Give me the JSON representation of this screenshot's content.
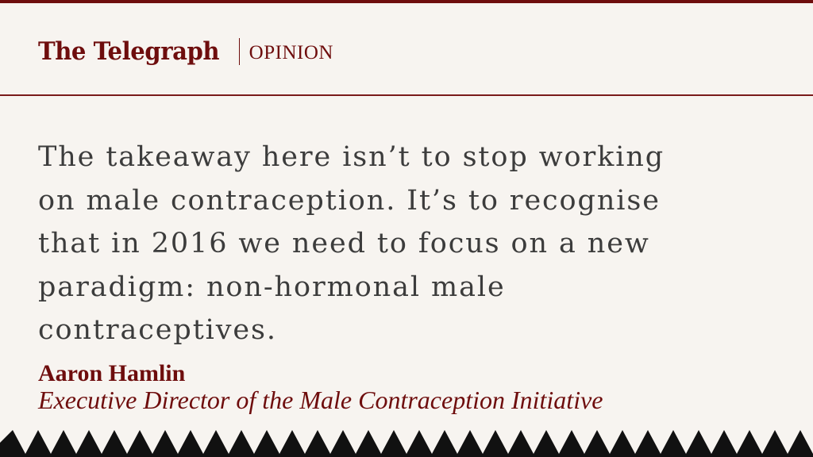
{
  "masthead": {
    "brand": "The Telegraph",
    "section": "OPINION"
  },
  "quote": {
    "text": "The takeaway here isn’t to stop working\non male contraception. It’s to recognise\nthat in 2016 we need to focus on a new\nparadigm: non-hormonal male\ncontraceptives."
  },
  "author": {
    "name": "Aaron Hamlin",
    "title": "Executive Director of the Male Contraception Initiative"
  },
  "colors": {
    "brand": "#6e0d0d",
    "background": "#f7f4f0",
    "quote_text": "#3c3c3c",
    "zigzag": "#111111"
  }
}
